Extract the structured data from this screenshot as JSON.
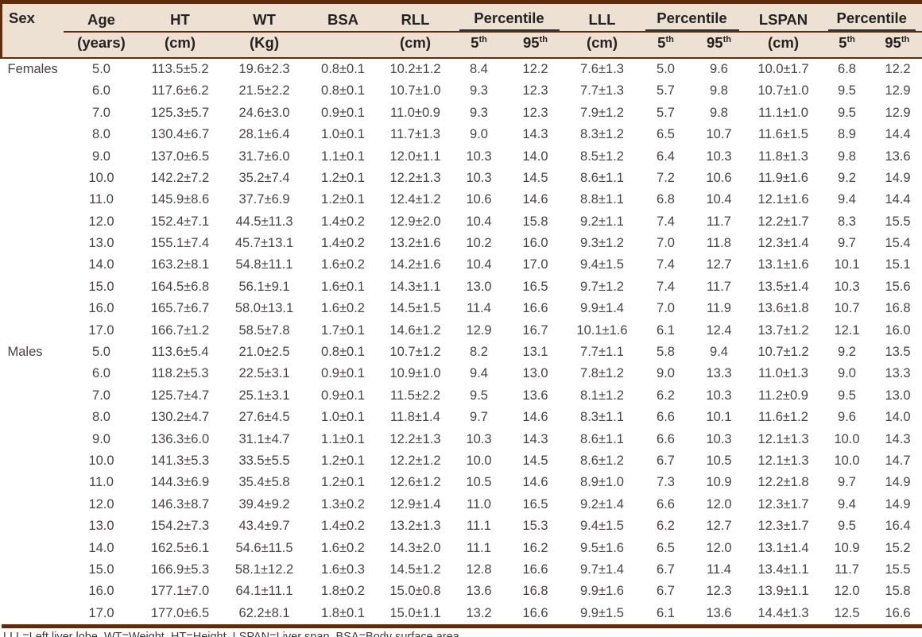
{
  "colors": {
    "rule_brown": "#5e2d0e",
    "header_bg": "#ece1d2",
    "percentile_underline": "#332e29",
    "body_text": "#484443"
  },
  "table": {
    "header": {
      "sex": "Sex",
      "age1": "Age",
      "age2": "(years)",
      "ht1": "HT",
      "ht2": "(cm)",
      "wt1": "WT",
      "wt2": "(Kg)",
      "bsa1": "BSA",
      "rll1": "RLL",
      "rll2": "(cm)",
      "lll1": "LLL",
      "lll2": "(cm)",
      "lspan1": "LSPAN",
      "lspan2": "(cm)",
      "percentile": "Percentile",
      "p5_base": "5",
      "p95_base": "95",
      "p_sup": "th"
    },
    "columns_order": [
      "age",
      "ht",
      "wt",
      "bsa",
      "rll",
      "rll_p5",
      "rll_p95",
      "lll",
      "lll_p5",
      "lll_p95",
      "lspan",
      "lspan_p5",
      "lspan_p95"
    ],
    "groups": [
      {
        "sex": "Females",
        "rows": [
          [
            "5.0",
            "113.5±5.2",
            "19.6±2.3",
            "0.8±0.1",
            "10.2±1.2",
            "8.4",
            "12.2",
            "7.6±1.3",
            "5.0",
            "9.6",
            "10.0±1.7",
            "6.8",
            "12.2"
          ],
          [
            "6.0",
            "117.6±6.2",
            "21.5±2.2",
            "0.8±0.1",
            "10.7±1.0",
            "9.3",
            "12.3",
            "7.7±1.3",
            "5.7",
            "9.8",
            "10.7±1.0",
            "9.5",
            "12.9"
          ],
          [
            "7.0",
            "125.3±5.7",
            "24.6±3.0",
            "0.9±0.1",
            "11.0±0.9",
            "9.3",
            "12.3",
            "7.9±1.2",
            "5.7",
            "9.8",
            "11.1±1.0",
            "9.5",
            "12.9"
          ],
          [
            "8.0",
            "130.4±6.7",
            "28.1±6.4",
            "1.0±0.1",
            "11.7±1.3",
            "9.0",
            "14.3",
            "8.3±1.2",
            "6.5",
            "10.7",
            "11.6±1.5",
            "8.9",
            "14.4"
          ],
          [
            "9.0",
            "137.0±6.5",
            "31.7±6.0",
            "1.1±0.1",
            "12.0±1.1",
            "10.3",
            "14.0",
            "8.5±1.2",
            "6.4",
            "10.3",
            "11.8±1.3",
            "9.8",
            "13.6"
          ],
          [
            "10.0",
            "142.2±7.2",
            "35.2±7.4",
            "1.2±0.1",
            "12.2±1.3",
            "10.3",
            "14.5",
            "8.6±1.1",
            "7.2",
            "10.6",
            "11.9±1.6",
            "9.2",
            "14.9"
          ],
          [
            "11.0",
            "145.9±8.6",
            "37.7±6.9",
            "1.2±0.1",
            "12.4±1.2",
            "10.6",
            "14.6",
            "8.8±1.1",
            "6.8",
            "10.4",
            "12.1±1.6",
            "9.4",
            "14.4"
          ],
          [
            "12.0",
            "152.4±7.1",
            "44.5±11.3",
            "1.4±0.2",
            "12.9±2.0",
            "10.4",
            "15.8",
            "9.2±1.1",
            "7.4",
            "11.7",
            "12.2±1.7",
            "8.3",
            "15.5"
          ],
          [
            "13.0",
            "155.1±7.4",
            "45.7±13.1",
            "1.4±0.2",
            "13.2±1.6",
            "10.2",
            "16.0",
            "9.3±1.2",
            "7.0",
            "11.8",
            "12.3±1.4",
            "9.7",
            "15.4"
          ],
          [
            "14.0",
            "163.2±8.1",
            "54.8±11.1",
            "1.6±0.2",
            "14.2±1.6",
            "10.4",
            "17.0",
            "9.4±1.5",
            "7.4",
            "12.7",
            "13.1±1.6",
            "10.1",
            "15.1"
          ],
          [
            "15.0",
            "164.5±6.8",
            "56.1±9.1",
            "1.6±0.1",
            "14.3±1.1",
            "13.0",
            "16.5",
            "9.7±1.2",
            "7.4",
            "11.7",
            "13.5±1.4",
            "10.3",
            "15.6"
          ],
          [
            "16.0",
            "165.7±6.7",
            "58.0±13.1",
            "1.6±0.2",
            "14.5±1.5",
            "11.4",
            "16.6",
            "9.9±1.4",
            "7.0",
            "11.9",
            "13.6±1.8",
            "10.7",
            "16.8"
          ],
          [
            "17.0",
            "166.7±1.2",
            "58.5±7.8",
            "1.7±0.1",
            "14.6±1.2",
            "12.9",
            "16.7",
            "10.1±1.6",
            "6.1",
            "12.4",
            "13.7±1.2",
            "12.1",
            "16.0"
          ]
        ]
      },
      {
        "sex": "Males",
        "rows": [
          [
            "5.0",
            "113.6±5.4",
            "21.0±2.5",
            "0.8±0.1",
            "10.7±1.2",
            "8.2",
            "13.1",
            "7.7±1.1",
            "5.8",
            "9.4",
            "10.7±1.2",
            "9.2",
            "13.5"
          ],
          [
            "6.0",
            "118.2±5.3",
            "22.5±3.1",
            "0.9±0.1",
            "10.9±1.0",
            "9.4",
            "13.0",
            "7.8±1.2",
            "9.0",
            "13.3",
            "11.0±1.3",
            "9.0",
            "13.3"
          ],
          [
            "7.0",
            "125.7±4.7",
            "25.1±3.1",
            "0.9±0.1",
            "11.5±2.2",
            "9.5",
            "13.6",
            "8.1±1.2",
            "6.2",
            "10.3",
            "11.2±0.9",
            "9.5",
            "13.0"
          ],
          [
            "8.0",
            "130.2±4.7",
            "27.6±4.5",
            "1.0±0.1",
            "11.8±1.4",
            "9.7",
            "14.6",
            "8.3±1.1",
            "6.6",
            "10.1",
            "11.6±1.2",
            "9.6",
            "14.0"
          ],
          [
            "9.0",
            "136.3±6.0",
            "31.1±4.7",
            "1.1±0.1",
            "12.2±1.3",
            "10.3",
            "14.3",
            "8.6±1.1",
            "6.6",
            "10.3",
            "12.1±1.3",
            "10.0",
            "14.3"
          ],
          [
            "10.0",
            "141.3±5.3",
            "33.5±5.5",
            "1.2±0.1",
            "12.2±1.2",
            "10.0",
            "14.5",
            "8.6±1.2",
            "6.7",
            "10.5",
            "12.1±1.3",
            "10.0",
            "14.7"
          ],
          [
            "11.0",
            "144.3±6.9",
            "35.4±5.8",
            "1.2±0.1",
            "12.6±1.2",
            "10.5",
            "14.6",
            "8.9±1.0",
            "7.3",
            "10.9",
            "12.2±1.8",
            "9.7",
            "14.9"
          ],
          [
            "12.0",
            "146.3±8.7",
            "39.4±9.2",
            "1.3±0.2",
            "12.9±1.4",
            "11.0",
            "16.5",
            "9.2±1.4",
            "6.6",
            "12.0",
            "12.3±1.7",
            "9.4",
            "14.9"
          ],
          [
            "13.0",
            "154.2±7.3",
            "43.4±9.7",
            "1.4±0.2",
            "13.2±1.3",
            "11.1",
            "15.3",
            "9.4±1.5",
            "6.2",
            "12.7",
            "12.3±1.7",
            "9.5",
            "16.4"
          ],
          [
            "14.0",
            "162.5±6.1",
            "54.6±11.5",
            "1.6±0.2",
            "14.3±2.0",
            "11.1",
            "16.2",
            "9.5±1.6",
            "6.5",
            "12.0",
            "13.1±1.4",
            "10.9",
            "15.2"
          ],
          [
            "15.0",
            "166.9±5.3",
            "58.1±12.2",
            "1.6±0.3",
            "14.5±1.2",
            "12.8",
            "16.6",
            "9.7±1.4",
            "6.7",
            "11.4",
            "13.4±1.1",
            "11.7",
            "15.5"
          ],
          [
            "16.0",
            "177.1±7.0",
            "64.1±11.1",
            "1.8±0.2",
            "15.0±0.8",
            "13.6",
            "16.8",
            "9.9±1.6",
            "6.7",
            "12.3",
            "13.9±1.1",
            "12.0",
            "15.8"
          ],
          [
            "17.0",
            "177.0±6.5",
            "62.2±8.1",
            "1.8±0.1",
            "15.0±1.1",
            "13.2",
            "16.6",
            "9.9±1.5",
            "6.1",
            "13.6",
            "14.4±1.3",
            "12.5",
            "16.6"
          ]
        ]
      }
    ],
    "footnote": "LLL=Left liver lobe, WT=Weight, HT=Height, LSPAN=Liver span, BSA=Body surface area"
  }
}
